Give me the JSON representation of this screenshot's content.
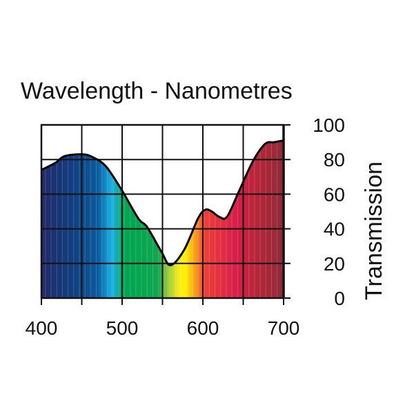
{
  "chart_data": {
    "type": "area",
    "title": "Wavelength - Nanometres",
    "xlabel": "",
    "ylabel": "Transmission",
    "xlim": [
      400,
      700
    ],
    "ylim": [
      0,
      100
    ],
    "xticks": [
      400,
      500,
      600,
      700
    ],
    "yticks": [
      0,
      20,
      40,
      60,
      80,
      100
    ],
    "grid": true,
    "x_grid_step": 50,
    "series": [
      {
        "name": "Transmission",
        "x": [
          400,
          417,
          429,
          450,
          463,
          480,
          500,
          520,
          531,
          549,
          560,
          577,
          594,
          603,
          611,
          620,
          630,
          645,
          662,
          677,
          688,
          700
        ],
        "y": [
          74,
          78,
          82,
          83,
          81.5,
          76,
          62,
          46,
          41,
          26.5,
          19,
          28,
          46,
          51,
          50,
          47,
          47,
          62,
          79,
          89,
          90,
          91
        ]
      }
    ],
    "spectrum_colors": [
      {
        "nm": 400,
        "color": "#232a6a"
      },
      {
        "nm": 440,
        "color": "#103f80"
      },
      {
        "nm": 470,
        "color": "#0b5c9e"
      },
      {
        "nm": 487,
        "color": "#1ab0e6"
      },
      {
        "nm": 497,
        "color": "#10a88a"
      },
      {
        "nm": 502,
        "color": "#00a651"
      },
      {
        "nm": 545,
        "color": "#10a650"
      },
      {
        "nm": 555,
        "color": "#8dc63f"
      },
      {
        "nm": 570,
        "color": "#f4ec1c"
      },
      {
        "nm": 578,
        "color": "#fff200"
      },
      {
        "nm": 592,
        "color": "#f7941d"
      },
      {
        "nm": 602,
        "color": "#ee4136"
      },
      {
        "nm": 640,
        "color": "#d91e4a"
      },
      {
        "nm": 665,
        "color": "#b8263a"
      },
      {
        "nm": 700,
        "color": "#8f2b36"
      }
    ]
  }
}
